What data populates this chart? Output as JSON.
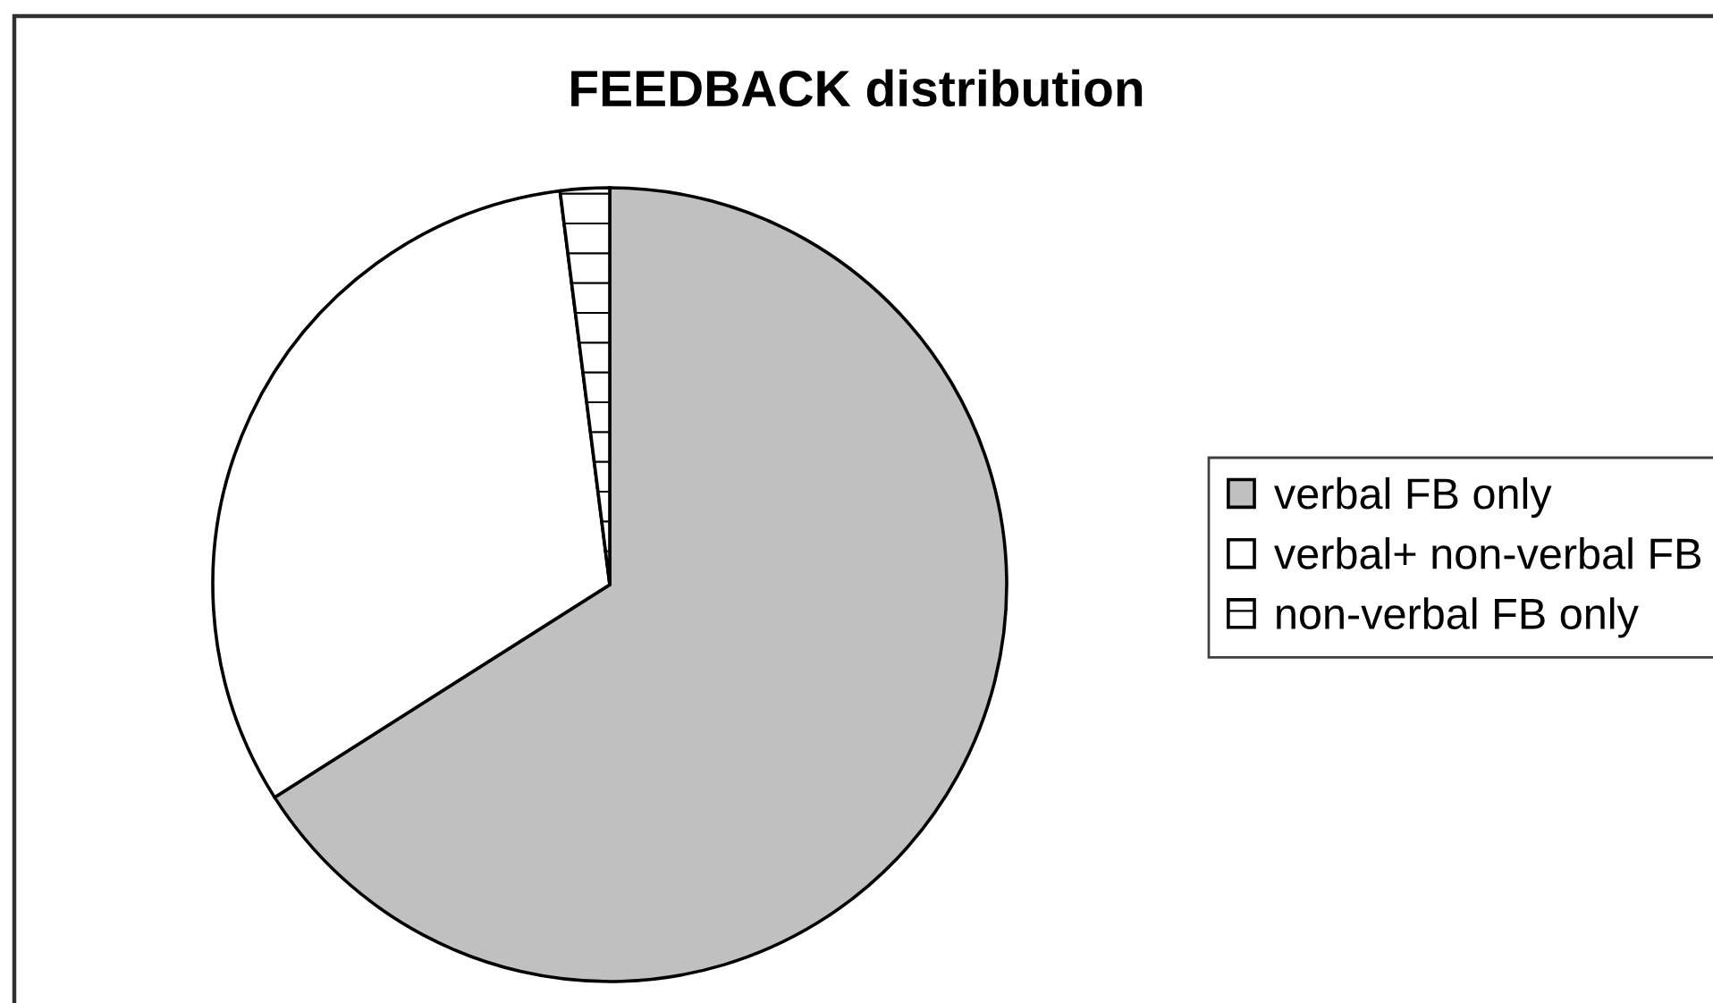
{
  "chart_data": {
    "type": "pie",
    "title": "FEEDBACK distribution",
    "categories": [
      "verbal FB only",
      "verbal+ non-verbal FB",
      "non-verbal FB only"
    ],
    "values": [
      66,
      32,
      2
    ],
    "colors": [
      "#c0c0c0",
      "#ffffff",
      "#ffffff"
    ],
    "legend": "right"
  }
}
